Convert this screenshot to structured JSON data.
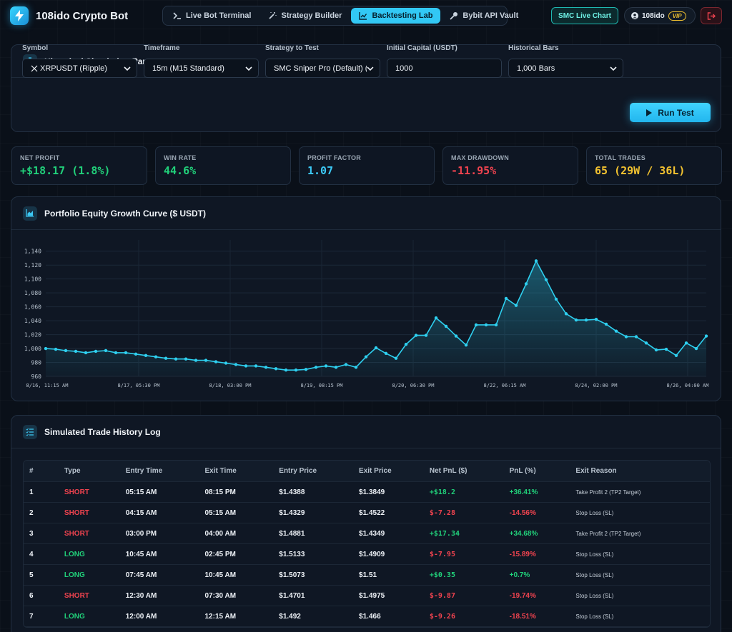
{
  "nav": {
    "brand": "108ido Crypto Bot",
    "tabs": [
      {
        "label": "Live Bot Terminal",
        "icon": "terminal-icon"
      },
      {
        "label": "Strategy Builder",
        "icon": "magic-wand-icon"
      },
      {
        "label": "Backtesting Lab",
        "icon": "chart-line-icon",
        "active": true
      },
      {
        "label": "Bybit API Vault",
        "icon": "key-icon"
      }
    ],
    "smc_button": "SMC Live Chart",
    "user": "108ido",
    "badge": "VIP"
  },
  "params": {
    "title": "Historical Simulation Parameters",
    "symbol_label": "Symbol",
    "symbol_value": "XRPUSDT (Ripple)",
    "timeframe_label": "Timeframe",
    "timeframe_value": "15m (M15 Standard)",
    "strategy_label": "Strategy to Test",
    "strategy_value": "SMC Sniper Pro (Default) (",
    "capital_label": "Initial Capital (USDT)",
    "capital_value": "1000",
    "bars_label": "Historical Bars",
    "bars_value": "1,000 Bars",
    "run_label": "Run Test"
  },
  "stats": [
    {
      "label": "NET PROFIT",
      "value": "+$18.17 (1.8%)",
      "color": "#21d07a"
    },
    {
      "label": "WIN RATE",
      "value": "44.6%",
      "color": "#21d07a"
    },
    {
      "label": "PROFIT FACTOR",
      "value": "1.07",
      "color": "#3cc9f5"
    },
    {
      "label": "MAX DRAWDOWN",
      "value": "-11.95%",
      "color": "#f0434f"
    },
    {
      "label": "TOTAL TRADES",
      "value": "65 (29W / 36L)",
      "color": "#f2c230"
    }
  ],
  "chart": {
    "title": "Portfolio Equity Growth Curve ($ USDT)"
  },
  "chart_data": {
    "type": "area",
    "yticks": [
      "1,140",
      "1,120",
      "1,100",
      "1,080",
      "1,060",
      "1,040",
      "1,020",
      "1,000",
      "980",
      "960"
    ],
    "ylim": [
      960,
      1150
    ],
    "xticks": [
      "8/16, 11:15 AM",
      "8/17, 05:30 PM",
      "8/18, 03:00 PM",
      "8/19, 08:15 PM",
      "8/20, 06:30 PM",
      "8/22, 06:15 AM",
      "8/24, 02:00 PM",
      "8/26, 04:00 AM"
    ],
    "grid": true,
    "color": "#2ed0f0",
    "values": [
      1000,
      999,
      997,
      996,
      994,
      996,
      997,
      994,
      994,
      992,
      990,
      988,
      986,
      985,
      985,
      983,
      983,
      981,
      979,
      977,
      975,
      975,
      973,
      971,
      969,
      969,
      970,
      973,
      975,
      973,
      977,
      973,
      988,
      1001,
      993,
      986,
      1006,
      1019,
      1019,
      1044,
      1032,
      1018,
      1005,
      1034,
      1034,
      1034,
      1072,
      1062,
      1093,
      1126,
      1099,
      1071,
      1050,
      1041,
      1041,
      1042,
      1035,
      1025,
      1017,
      1017,
      1008,
      998,
      999,
      990,
      1008,
      1000,
      1018
    ]
  },
  "trades": {
    "title": "Simulated Trade History Log",
    "headers": [
      "#",
      "Type",
      "Entry Time",
      "Exit Time",
      "Entry Price",
      "Exit Price",
      "Net PnL ($)",
      "PnL (%)",
      "Exit Reason"
    ],
    "rows": [
      {
        "n": "1",
        "type": "SHORT",
        "entry_time": "05:15 AM",
        "exit_time": "08:15 PM",
        "entry_price": "$1.4388",
        "exit_price": "$1.3849",
        "pnl": "+$18.2",
        "pct": "+36.41%",
        "reason": "Take Profit 2 (TP2 Target)"
      },
      {
        "n": "2",
        "type": "SHORT",
        "entry_time": "04:15 AM",
        "exit_time": "05:15 AM",
        "entry_price": "$1.4329",
        "exit_price": "$1.4522",
        "pnl": "$-7.28",
        "pct": "-14.56%",
        "reason": "Stop Loss (SL)"
      },
      {
        "n": "3",
        "type": "SHORT",
        "entry_time": "03:00 PM",
        "exit_time": "04:00 AM",
        "entry_price": "$1.4881",
        "exit_price": "$1.4349",
        "pnl": "+$17.34",
        "pct": "+34.68%",
        "reason": "Take Profit 2 (TP2 Target)"
      },
      {
        "n": "4",
        "type": "LONG",
        "entry_time": "10:45 AM",
        "exit_time": "02:45 PM",
        "entry_price": "$1.5133",
        "exit_price": "$1.4909",
        "pnl": "$-7.95",
        "pct": "-15.89%",
        "reason": "Stop Loss (SL)"
      },
      {
        "n": "5",
        "type": "LONG",
        "entry_time": "07:45 AM",
        "exit_time": "10:45 AM",
        "entry_price": "$1.5073",
        "exit_price": "$1.51",
        "pnl": "+$0.35",
        "pct": "+0.7%",
        "reason": "Stop Loss (SL)"
      },
      {
        "n": "6",
        "type": "SHORT",
        "entry_time": "12:30 AM",
        "exit_time": "07:30 AM",
        "entry_price": "$1.4701",
        "exit_price": "$1.4975",
        "pnl": "$-9.87",
        "pct": "-19.74%",
        "reason": "Stop Loss (SL)"
      },
      {
        "n": "7",
        "type": "LONG",
        "entry_time": "12:00 AM",
        "exit_time": "12:15 AM",
        "entry_price": "$1.492",
        "exit_price": "$1.466",
        "pnl": "$-9.26",
        "pct": "-18.51%",
        "reason": "Stop Loss (SL)"
      }
    ]
  }
}
